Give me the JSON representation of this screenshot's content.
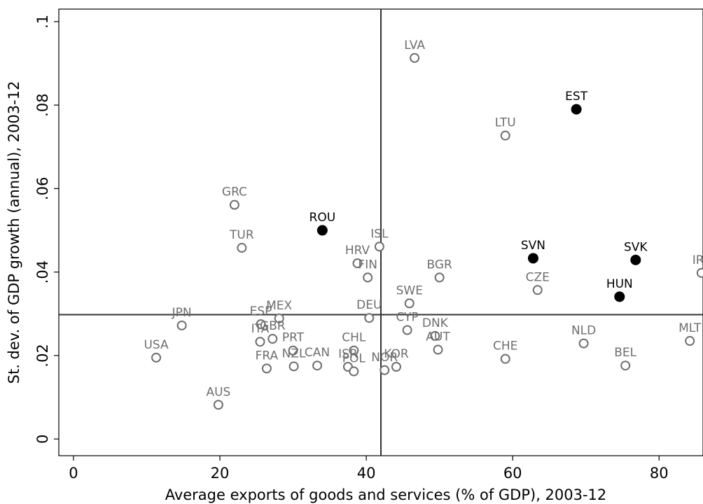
{
  "chart_data": {
    "type": "scatter",
    "title": "",
    "xlabel": "Average exports of goods and services (% of GDP), 2003-12",
    "ylabel": "St. dev. of GDP growth (annual), 2003-12",
    "xlim": [
      -2,
      86
    ],
    "ylim": [
      -0.004,
      0.103
    ],
    "x_ticks": [
      {
        "value": 0,
        "label": "0"
      },
      {
        "value": 20,
        "label": "20"
      },
      {
        "value": 40,
        "label": "40"
      },
      {
        "value": 60,
        "label": "60"
      },
      {
        "value": 80,
        "label": "80"
      }
    ],
    "y_ticks": [
      {
        "value": 0,
        "label": "0"
      },
      {
        "value": 0.02,
        "label": ".02"
      },
      {
        "value": 0.04,
        "label": ".04"
      },
      {
        "value": 0.06,
        "label": ".06"
      },
      {
        "value": 0.08,
        "label": ".08"
      },
      {
        "value": 0.1,
        "label": ".1"
      }
    ],
    "reference_lines": {
      "x": 42,
      "y": 0.0298
    },
    "grid": false,
    "colors": {
      "hollow": "#6e6e6e",
      "highlight": "#000000"
    },
    "points": [
      {
        "label": "LVA",
        "x": 46.6,
        "y": 0.0913,
        "highlight": false
      },
      {
        "label": "EST",
        "x": 68.7,
        "y": 0.079,
        "highlight": true
      },
      {
        "label": "LTU",
        "x": 59.0,
        "y": 0.0727,
        "highlight": false
      },
      {
        "label": "GRC",
        "x": 22.0,
        "y": 0.0561,
        "highlight": false
      },
      {
        "label": "ROU",
        "x": 34.0,
        "y": 0.05,
        "highlight": true
      },
      {
        "label": "ISL",
        "x": 41.8,
        "y": 0.0461,
        "highlight": false
      },
      {
        "label": "TUR",
        "x": 23.0,
        "y": 0.0458,
        "highlight": false
      },
      {
        "label": "SVN",
        "x": 62.8,
        "y": 0.0433,
        "highlight": true
      },
      {
        "label": "SVK",
        "x": 76.8,
        "y": 0.0429,
        "highlight": true
      },
      {
        "label": "HRV",
        "x": 38.8,
        "y": 0.0421,
        "highlight": false
      },
      {
        "label": "IRL",
        "x": 85.8,
        "y": 0.0398,
        "highlight": false
      },
      {
        "label": "FIN",
        "x": 40.2,
        "y": 0.0387,
        "highlight": false
      },
      {
        "label": "BGR",
        "x": 50.0,
        "y": 0.0387,
        "highlight": false
      },
      {
        "label": "CZE",
        "x": 63.4,
        "y": 0.0357,
        "highlight": false
      },
      {
        "label": "HUN",
        "x": 74.6,
        "y": 0.0341,
        "highlight": true
      },
      {
        "label": "SWE",
        "x": 45.9,
        "y": 0.0325,
        "highlight": false
      },
      {
        "label": "DEU",
        "x": 40.4,
        "y": 0.029,
        "highlight": false
      },
      {
        "label": "MEX",
        "x": 28.1,
        "y": 0.0289,
        "highlight": false
      },
      {
        "label": "ESP",
        "x": 25.6,
        "y": 0.0275,
        "highlight": false
      },
      {
        "label": "JPN",
        "x": 14.8,
        "y": 0.0272,
        "highlight": false
      },
      {
        "label": "CYP",
        "x": 45.6,
        "y": 0.0261,
        "highlight": false
      },
      {
        "label": "DNK",
        "x": 49.4,
        "y": 0.0247,
        "highlight": false
      },
      {
        "label": "GBR",
        "x": 27.2,
        "y": 0.024,
        "highlight": false
      },
      {
        "label": "MLT",
        "x": 84.2,
        "y": 0.0235,
        "highlight": false
      },
      {
        "label": "ITA",
        "x": 25.5,
        "y": 0.0233,
        "highlight": false
      },
      {
        "label": "NLD",
        "x": 69.7,
        "y": 0.0229,
        "highlight": false
      },
      {
        "label": "AUT",
        "x": 49.8,
        "y": 0.0214,
        "highlight": false
      },
      {
        "label": "PRT",
        "x": 30.0,
        "y": 0.0212,
        "highlight": false
      },
      {
        "label": "CHL",
        "x": 38.3,
        "y": 0.0212,
        "highlight": false
      },
      {
        "label": "USA",
        "x": 11.3,
        "y": 0.0195,
        "highlight": false
      },
      {
        "label": "CHE",
        "x": 59.0,
        "y": 0.0192,
        "highlight": false
      },
      {
        "label": "BEL",
        "x": 75.4,
        "y": 0.0176,
        "highlight": false
      },
      {
        "label": "CAN",
        "x": 33.3,
        "y": 0.0176,
        "highlight": false
      },
      {
        "label": "NZL",
        "x": 30.1,
        "y": 0.0174,
        "highlight": false
      },
      {
        "label": "ISR",
        "x": 37.5,
        "y": 0.0173,
        "highlight": false
      },
      {
        "label": "KOR",
        "x": 44.1,
        "y": 0.0173,
        "highlight": false
      },
      {
        "label": "FRA",
        "x": 26.4,
        "y": 0.0169,
        "highlight": false
      },
      {
        "label": "NOR",
        "x": 42.5,
        "y": 0.0165,
        "highlight": false
      },
      {
        "label": "POL",
        "x": 38.3,
        "y": 0.0162,
        "highlight": false
      },
      {
        "label": "AUS",
        "x": 19.8,
        "y": 0.0082,
        "highlight": false
      }
    ]
  }
}
